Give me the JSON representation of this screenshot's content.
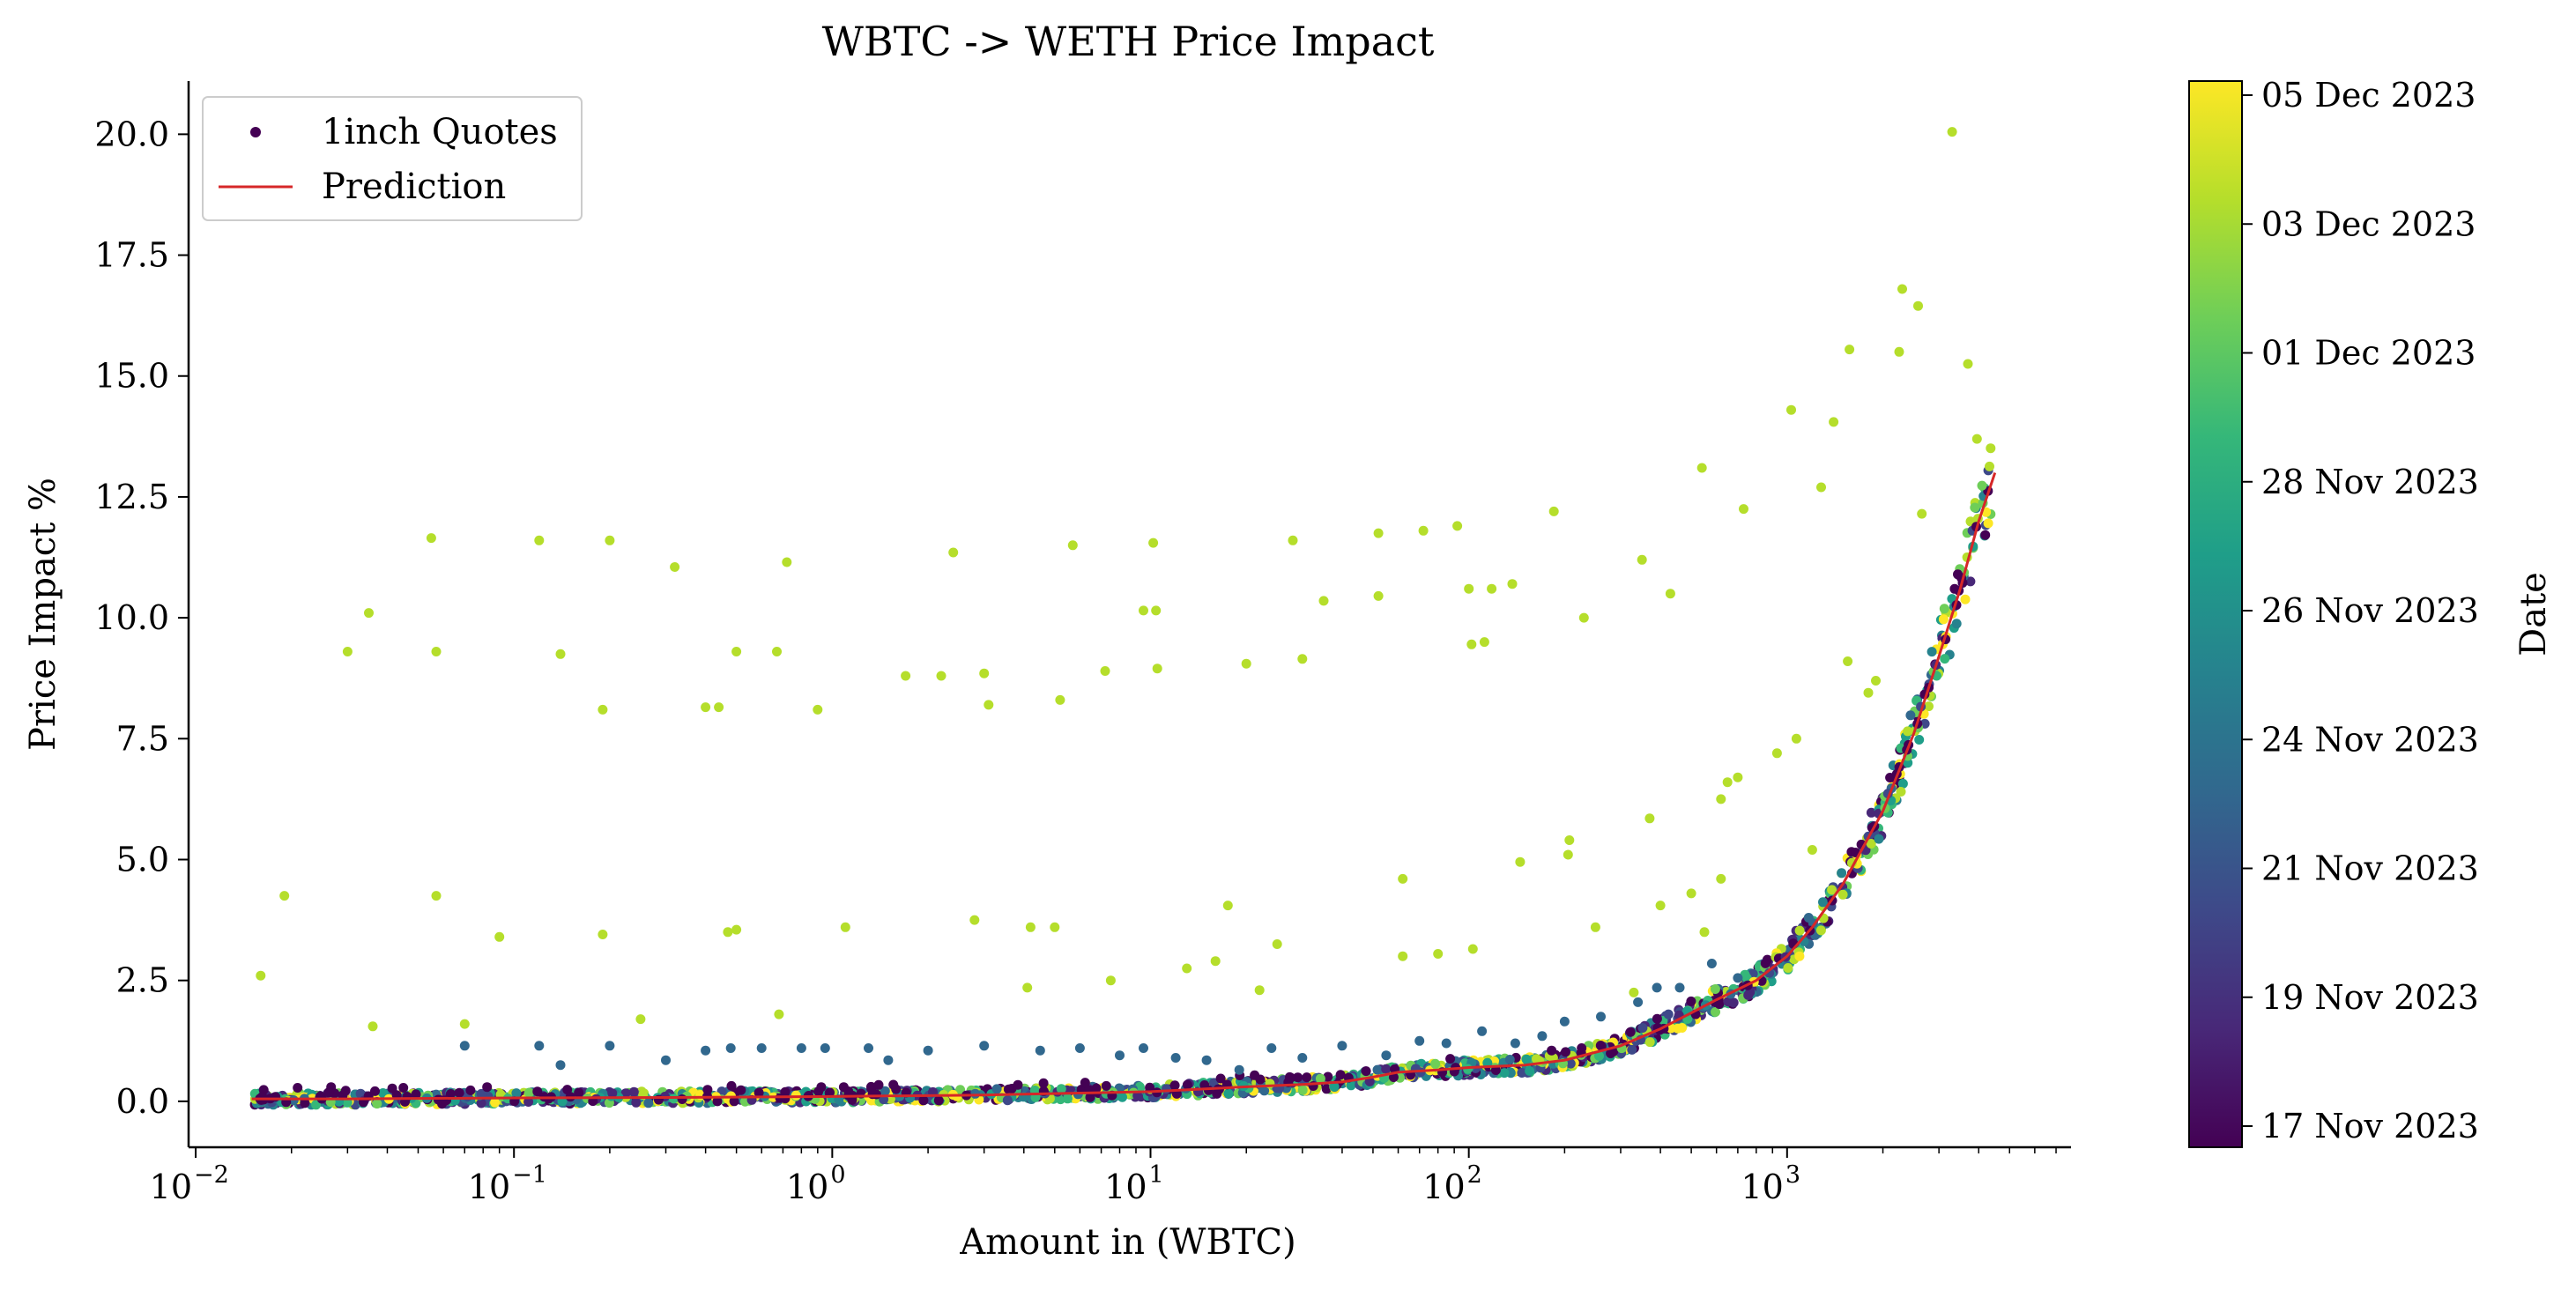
{
  "chart_data": {
    "type": "scatter",
    "title": "WBTC -> WETH Price Impact",
    "xlabel": "Amount in (WBTC)",
    "ylabel": "Price Impact %",
    "xscale": "log",
    "xlim": [
      0.0095,
      7800
    ],
    "ylim": [
      -0.95,
      21.1
    ],
    "x_ticks": [
      {
        "value": 0.01,
        "base": "10",
        "exp": "−2"
      },
      {
        "value": 0.1,
        "base": "10",
        "exp": "−1"
      },
      {
        "value": 1,
        "base": "10",
        "exp": "0"
      },
      {
        "value": 10,
        "base": "10",
        "exp": "1"
      },
      {
        "value": 100,
        "base": "10",
        "exp": "2"
      },
      {
        "value": 1000,
        "base": "10",
        "exp": "3"
      }
    ],
    "y_ticks": [
      "0.0",
      "2.5",
      "5.0",
      "7.5",
      "10.0",
      "12.5",
      "15.0",
      "17.5",
      "20.0"
    ],
    "grid": false,
    "legend": {
      "position": "top-left",
      "entries": [
        {
          "label": "1inch Quotes",
          "marker": "point",
          "color": "#440154"
        },
        {
          "label": "Prediction",
          "marker": "line",
          "color": "#d62728"
        }
      ]
    },
    "colorbar": {
      "label": "Date",
      "cmap": "viridis",
      "ticks": [
        "17 Nov 2023",
        "19 Nov 2023",
        "21 Nov 2023",
        "24 Nov 2023",
        "26 Nov 2023",
        "28 Nov 2023",
        "01 Dec 2023",
        "03 Dec 2023",
        "05 Dec 2023"
      ],
      "stops": [
        "#440154",
        "#482878",
        "#3e4989",
        "#31688e",
        "#26828e",
        "#1f9e89",
        "#35b779",
        "#6ece58",
        "#b5de2b",
        "#fde725"
      ]
    },
    "prediction": {
      "color": "#d62728",
      "x": [
        0.015,
        0.03,
        0.1,
        0.3,
        1,
        3,
        10,
        20,
        30,
        40,
        50,
        60,
        80,
        100,
        150,
        200,
        300,
        400,
        600,
        800,
        1000,
        1200,
        1500,
        2000,
        2500,
        3000,
        3500,
        4000,
        4500
      ],
      "y": [
        0.05,
        0.05,
        0.07,
        0.08,
        0.1,
        0.13,
        0.2,
        0.3,
        0.35,
        0.4,
        0.5,
        0.6,
        0.65,
        0.7,
        0.75,
        0.85,
        1.15,
        1.5,
        2.1,
        2.5,
        3.0,
        3.6,
        4.5,
        6.0,
        7.6,
        9.2,
        10.6,
        12.0,
        13.0
      ]
    },
    "outliers": {
      "color": "#b5de2b",
      "points": [
        [
          0.016,
          2.6
        ],
        [
          0.019,
          4.25
        ],
        [
          0.03,
          9.3
        ],
        [
          0.035,
          10.1
        ],
        [
          0.036,
          1.55
        ],
        [
          0.055,
          11.65
        ],
        [
          0.057,
          9.3
        ],
        [
          0.057,
          4.25
        ],
        [
          0.07,
          1.6
        ],
        [
          0.09,
          3.4
        ],
        [
          0.12,
          11.6
        ],
        [
          0.14,
          9.25
        ],
        [
          0.19,
          8.1
        ],
        [
          0.19,
          3.45
        ],
        [
          0.2,
          11.6
        ],
        [
          0.25,
          1.7
        ],
        [
          0.32,
          11.05
        ],
        [
          0.4,
          8.15
        ],
        [
          0.44,
          8.15
        ],
        [
          0.47,
          3.5
        ],
        [
          0.5,
          3.55
        ],
        [
          0.5,
          9.3
        ],
        [
          0.67,
          9.3
        ],
        [
          0.72,
          11.15
        ],
        [
          0.68,
          1.8
        ],
        [
          0.9,
          8.1
        ],
        [
          1.1,
          3.6
        ],
        [
          1.7,
          8.8
        ],
        [
          2.2,
          8.8
        ],
        [
          2.4,
          11.35
        ],
        [
          2.8,
          3.75
        ],
        [
          3.0,
          8.85
        ],
        [
          3.1,
          8.2
        ],
        [
          4.1,
          2.35
        ],
        [
          4.2,
          3.6
        ],
        [
          5.0,
          3.6
        ],
        [
          5.2,
          8.3
        ],
        [
          5.7,
          11.5
        ],
        [
          7.5,
          2.5
        ],
        [
          7.2,
          8.9
        ],
        [
          9.5,
          10.15
        ],
        [
          10.2,
          11.55
        ],
        [
          10.5,
          8.95
        ],
        [
          10.4,
          10.15
        ],
        [
          13,
          2.75
        ],
        [
          16,
          2.9
        ],
        [
          17.5,
          4.05
        ],
        [
          20,
          9.05
        ],
        [
          22,
          2.3
        ],
        [
          25,
          3.25
        ],
        [
          28,
          11.6
        ],
        [
          30,
          9.15
        ],
        [
          35,
          10.35
        ],
        [
          52,
          11.75
        ],
        [
          52,
          10.45
        ],
        [
          62,
          4.6
        ],
        [
          62,
          3.0
        ],
        [
          72,
          11.8
        ],
        [
          80,
          3.05
        ],
        [
          92,
          11.9
        ],
        [
          100,
          10.6
        ],
        [
          103,
          3.15
        ],
        [
          102,
          9.45
        ],
        [
          112,
          9.5
        ],
        [
          118,
          10.6
        ],
        [
          137,
          10.7
        ],
        [
          145,
          4.95
        ],
        [
          185,
          12.2
        ],
        [
          207,
          5.4
        ],
        [
          205,
          5.1
        ],
        [
          230,
          10.0
        ],
        [
          250,
          3.6
        ],
        [
          330,
          2.25
        ],
        [
          350,
          11.2
        ],
        [
          370,
          5.85
        ],
        [
          400,
          4.05
        ],
        [
          430,
          10.5
        ],
        [
          500,
          4.3
        ],
        [
          540,
          13.1
        ],
        [
          550,
          3.5
        ],
        [
          620,
          4.6
        ],
        [
          620,
          6.25
        ],
        [
          650,
          6.6
        ],
        [
          700,
          6.7
        ],
        [
          730,
          12.25
        ],
        [
          930,
          7.2
        ],
        [
          1030,
          14.3
        ],
        [
          1070,
          7.5
        ],
        [
          1200,
          5.2
        ],
        [
          1280,
          12.7
        ],
        [
          1400,
          14.05
        ],
        [
          1550,
          9.1
        ],
        [
          1570,
          15.55
        ],
        [
          1800,
          8.45
        ],
        [
          1900,
          8.7
        ],
        [
          2250,
          15.5
        ],
        [
          2300,
          16.8
        ],
        [
          2580,
          16.45
        ],
        [
          2650,
          12.15
        ],
        [
          3300,
          20.05
        ],
        [
          3700,
          15.25
        ],
        [
          3950,
          13.7
        ]
      ]
    },
    "midliers": {
      "color": "#31688e",
      "points": [
        [
          0.07,
          1.15
        ],
        [
          0.12,
          1.15
        ],
        [
          0.14,
          0.75
        ],
        [
          0.2,
          1.15
        ],
        [
          0.3,
          0.85
        ],
        [
          0.4,
          1.05
        ],
        [
          0.48,
          1.1
        ],
        [
          0.6,
          1.1
        ],
        [
          0.8,
          1.1
        ],
        [
          0.95,
          1.1
        ],
        [
          1.3,
          1.1
        ],
        [
          1.5,
          0.85
        ],
        [
          2.0,
          1.05
        ],
        [
          3.0,
          1.15
        ],
        [
          4.5,
          1.05
        ],
        [
          6.0,
          1.1
        ],
        [
          8.0,
          0.95
        ],
        [
          9.5,
          1.1
        ],
        [
          12,
          0.9
        ],
        [
          15,
          0.85
        ],
        [
          19,
          0.65
        ],
        [
          24,
          1.1
        ],
        [
          30,
          0.9
        ],
        [
          40,
          1.15
        ],
        [
          55,
          0.95
        ],
        [
          70,
          1.25
        ],
        [
          85,
          1.2
        ],
        [
          110,
          1.45
        ],
        [
          140,
          1.2
        ],
        [
          170,
          1.35
        ],
        [
          200,
          1.65
        ],
        [
          260,
          1.75
        ],
        [
          340,
          2.05
        ],
        [
          390,
          2.35
        ],
        [
          460,
          2.35
        ],
        [
          580,
          2.85
        ],
        [
          700,
          2.55
        ]
      ]
    }
  }
}
